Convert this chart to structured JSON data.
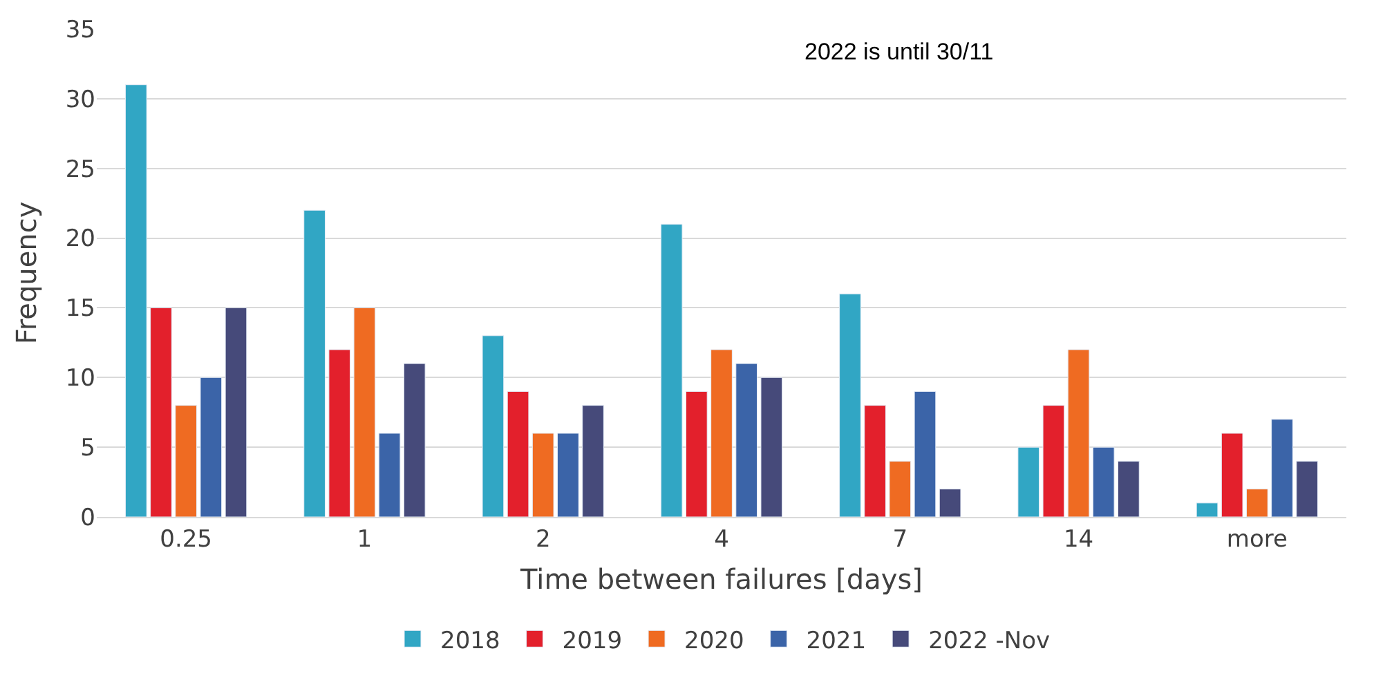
{
  "chart_data": {
    "type": "bar",
    "xlabel": "Time between failures [days]",
    "ylabel": "Frequency",
    "categories": [
      "0.25",
      "1",
      "2",
      "4",
      "7",
      "14",
      "more"
    ],
    "series": [
      {
        "name": "2018",
        "color": "#31a6c4",
        "values": [
          31,
          22,
          13,
          21,
          16,
          5,
          1
        ]
      },
      {
        "name": "2019",
        "color": "#e3202c",
        "values": [
          15,
          12,
          9,
          9,
          8,
          8,
          6
        ]
      },
      {
        "name": "2020",
        "color": "#ef6b22",
        "values": [
          8,
          15,
          6,
          12,
          4,
          12,
          2
        ]
      },
      {
        "name": "2021",
        "color": "#3b64a8",
        "values": [
          10,
          6,
          6,
          11,
          9,
          5,
          7
        ]
      },
      {
        "name": "2022 -Nov",
        "color": "#464a7a",
        "values": [
          15,
          11,
          8,
          10,
          2,
          4,
          4
        ]
      }
    ],
    "ylim": [
      0,
      35
    ],
    "yticks": [
      0,
      5,
      10,
      15,
      20,
      25,
      30,
      35
    ],
    "grid": "y",
    "legend": "bottom",
    "annotations": [
      "2022 is until 30/11"
    ]
  }
}
